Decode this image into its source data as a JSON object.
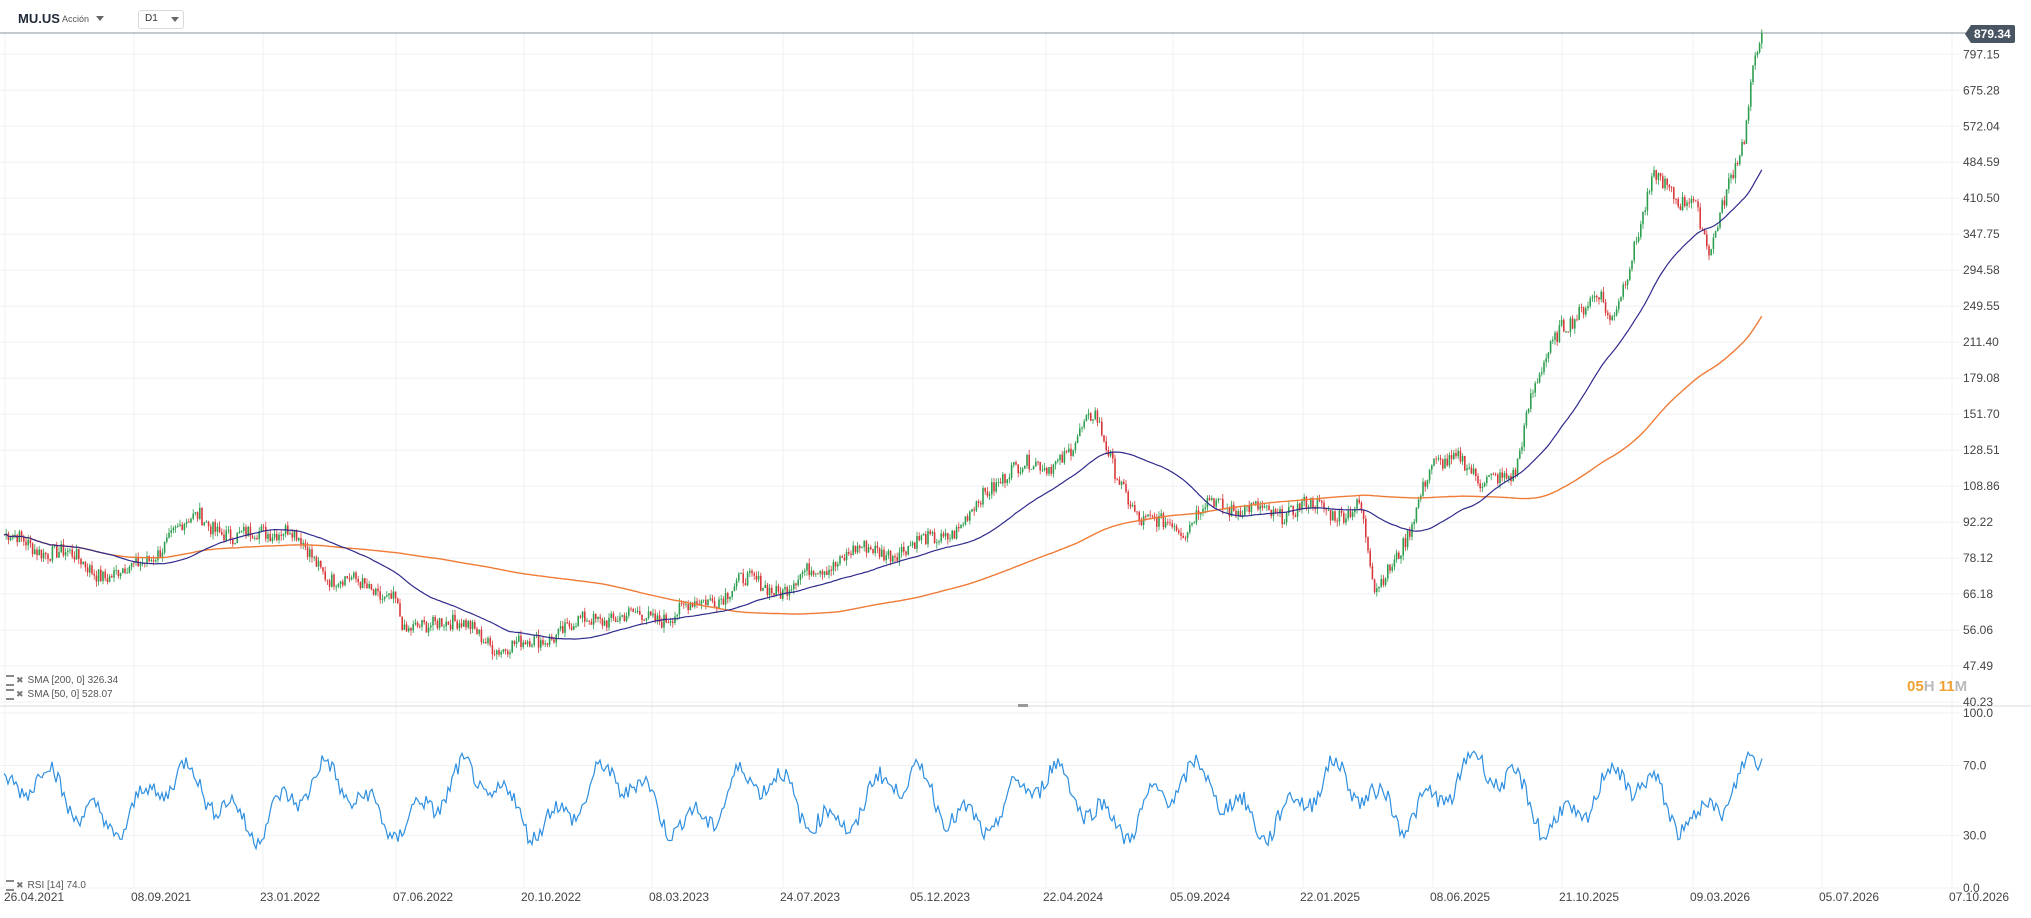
{
  "header": {
    "symbol": "MU.US",
    "symbol_type": "Acción",
    "timeframe": "D1"
  },
  "current_price_label": "879.34",
  "timer": {
    "hours": "05",
    "hours_unit": "H",
    "minutes": "11",
    "minutes_unit": "M"
  },
  "indicators": {
    "sma200_label": "SMA [200, 0] 326.34",
    "sma50_label": "SMA [50, 0] 528.07",
    "rsi_label": "RSI [14] 74.0"
  },
  "colors": {
    "candle_up": "#2e9e4f",
    "candle_down": "#d9383a",
    "sma50": "#2f2a8c",
    "sma200": "#f07b36",
    "rsi": "#2e8fe0",
    "grid": "#eef0f3",
    "axis_text": "#444444"
  },
  "chart_data": [
    {
      "type": "candlestick",
      "title": "MU.US D1",
      "yscale": "log",
      "ylim": [
        40.23,
        879.34
      ],
      "y_ticks": [
        "879.34",
        "797.15",
        "675.28",
        "572.04",
        "484.59",
        "410.50",
        "347.75",
        "294.58",
        "249.55",
        "211.40",
        "179.08",
        "151.70",
        "128.51",
        "108.86",
        "92.22",
        "78.12",
        "66.18",
        "56.06",
        "47.49",
        "40.23"
      ],
      "x_ticks": [
        "26.04.2021",
        "08.09.2021",
        "23.01.2022",
        "07.06.2022",
        "20.10.2022",
        "08.03.2023",
        "24.07.2023",
        "05.12.2023",
        "22.04.2024",
        "05.09.2024",
        "22.01.2025",
        "08.06.2025",
        "21.10.2025",
        "09.03.2026",
        "05.07.2026",
        "07.10.2026"
      ],
      "price_anchors": [
        {
          "date": "26.04.2021",
          "close": 86
        },
        {
          "date": "08.09.2021",
          "close": 74
        },
        {
          "date": "23.01.2022",
          "close": 90
        },
        {
          "date": "07.06.2022",
          "close": 65
        },
        {
          "date": "20.10.2022",
          "close": 52
        },
        {
          "date": "08.03.2023",
          "close": 59
        },
        {
          "date": "24.07.2023",
          "close": 68
        },
        {
          "date": "05.12.2023",
          "close": 82
        },
        {
          "date": "22.04.2024",
          "close": 118
        },
        {
          "date": "05.09.2024",
          "close": 95
        },
        {
          "date": "22.01.2025",
          "close": 100
        },
        {
          "date": "08.06.2025",
          "close": 118
        },
        {
          "date": "21.10.2025",
          "close": 230
        },
        {
          "date": "09.03.2026",
          "close": 420
        },
        {
          "date": "last",
          "close": 879.34
        }
      ],
      "series": [
        {
          "name": "SMA [200, 0]",
          "last_value": 326.34
        },
        {
          "name": "SMA [50, 0]",
          "last_value": 528.07
        }
      ]
    },
    {
      "type": "line",
      "title": "RSI [14]",
      "ylim": [
        0,
        100
      ],
      "y_ticks": [
        "100.0",
        "70.0",
        "30.0",
        "0.0"
      ],
      "last_value": 74.0
    }
  ]
}
